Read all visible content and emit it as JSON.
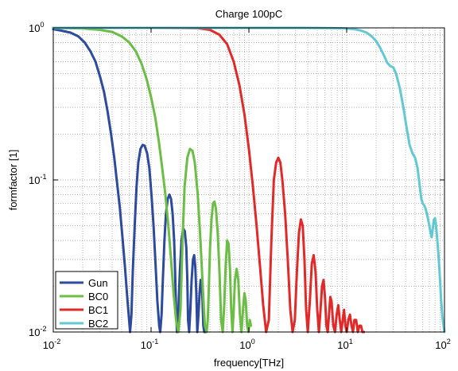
{
  "chart_data": {
    "type": "line",
    "title": "Charge 100pC",
    "xlabel": "frequency[THz]",
    "ylabel": "formfactor [1]",
    "x_scale": "log",
    "y_scale": "log",
    "xlim": [
      0.01,
      100
    ],
    "ylim": [
      0.01,
      1
    ],
    "grid": true,
    "legend_position": "bottom-left",
    "x_ticks": [
      {
        "base": "10",
        "exp": "-2"
      },
      {
        "base": "10",
        "exp": "-1"
      },
      {
        "base": "10",
        "exp": "0"
      },
      {
        "base": "10",
        "exp": "1"
      },
      {
        "base": "10",
        "exp": "2"
      }
    ],
    "y_ticks": [
      {
        "base": "10",
        "exp": "-2"
      },
      {
        "base": "10",
        "exp": "-1"
      },
      {
        "base": "10",
        "exp": "0"
      }
    ],
    "series": [
      {
        "name": "Gun",
        "color": "#2e4a9c",
        "x": [
          0.01,
          0.012,
          0.015,
          0.018,
          0.021,
          0.024,
          0.027,
          0.03,
          0.033,
          0.036,
          0.039,
          0.042,
          0.045,
          0.048,
          0.051,
          0.054,
          0.057,
          0.059,
          0.061,
          0.063,
          0.065,
          0.068,
          0.071,
          0.074,
          0.078,
          0.082,
          0.086,
          0.091,
          0.096,
          0.101,
          0.106,
          0.111,
          0.116,
          0.121,
          0.124,
          0.128,
          0.132,
          0.137,
          0.142,
          0.148,
          0.154,
          0.16,
          0.166,
          0.172,
          0.176,
          0.18,
          0.184,
          0.19,
          0.197,
          0.205,
          0.213,
          0.221,
          0.229,
          0.235,
          0.239,
          0.245,
          0.252,
          0.26,
          0.268,
          0.276,
          0.283,
          0.29,
          0.297,
          0.305,
          0.313,
          0.321,
          0.329,
          0.336,
          0.342,
          0.35,
          0.36
        ],
        "y": [
          0.98,
          0.96,
          0.93,
          0.88,
          0.8,
          0.7,
          0.6,
          0.48,
          0.38,
          0.28,
          0.2,
          0.14,
          0.095,
          0.065,
          0.042,
          0.027,
          0.017,
          0.013,
          0.01,
          0.013,
          0.025,
          0.05,
          0.09,
          0.13,
          0.16,
          0.17,
          0.168,
          0.15,
          0.12,
          0.08,
          0.05,
          0.028,
          0.016,
          0.011,
          0.01,
          0.013,
          0.022,
          0.04,
          0.06,
          0.075,
          0.08,
          0.075,
          0.06,
          0.04,
          0.025,
          0.014,
          0.01,
          0.014,
          0.025,
          0.04,
          0.048,
          0.046,
          0.036,
          0.022,
          0.012,
          0.01,
          0.014,
          0.022,
          0.03,
          0.032,
          0.027,
          0.018,
          0.01,
          0.013,
          0.018,
          0.022,
          0.021,
          0.016,
          0.011,
          0.01,
          0.01
        ]
      },
      {
        "name": "BC0",
        "color": "#6cbd45",
        "x": [
          0.01,
          0.02,
          0.03,
          0.04,
          0.05,
          0.06,
          0.07,
          0.08,
          0.09,
          0.1,
          0.11,
          0.12,
          0.13,
          0.14,
          0.15,
          0.16,
          0.17,
          0.18,
          0.19,
          0.2,
          0.21,
          0.22,
          0.235,
          0.25,
          0.265,
          0.28,
          0.3,
          0.32,
          0.34,
          0.355,
          0.37,
          0.38,
          0.39,
          0.4,
          0.415,
          0.43,
          0.445,
          0.46,
          0.48,
          0.5,
          0.52,
          0.54,
          0.56,
          0.58,
          0.6,
          0.62,
          0.64,
          0.66,
          0.68,
          0.7,
          0.72,
          0.75,
          0.78,
          0.81,
          0.84,
          0.87,
          0.9,
          0.93,
          0.96,
          0.99,
          1.02,
          1.05
        ],
        "y": [
          1.0,
          0.99,
          0.97,
          0.94,
          0.88,
          0.8,
          0.7,
          0.58,
          0.46,
          0.35,
          0.26,
          0.18,
          0.12,
          0.08,
          0.05,
          0.03,
          0.018,
          0.012,
          0.01,
          0.014,
          0.04,
          0.09,
          0.14,
          0.16,
          0.155,
          0.13,
          0.08,
          0.04,
          0.018,
          0.011,
          0.01,
          0.012,
          0.02,
          0.035,
          0.055,
          0.07,
          0.072,
          0.065,
          0.045,
          0.025,
          0.012,
          0.01,
          0.015,
          0.028,
          0.04,
          0.038,
          0.026,
          0.014,
          0.01,
          0.014,
          0.022,
          0.026,
          0.022,
          0.013,
          0.01,
          0.014,
          0.018,
          0.016,
          0.011,
          0.01,
          0.012,
          0.011
        ]
      },
      {
        "name": "BC1",
        "color": "#e02a2a",
        "x": [
          0.01,
          0.05,
          0.1,
          0.2,
          0.3,
          0.4,
          0.5,
          0.6,
          0.7,
          0.8,
          0.9,
          1.0,
          1.1,
          1.2,
          1.3,
          1.4,
          1.5,
          1.6,
          1.7,
          1.8,
          1.9,
          2.0,
          2.1,
          2.2,
          2.35,
          2.5,
          2.65,
          2.8,
          2.95,
          3.1,
          3.25,
          3.4,
          3.55,
          3.7,
          3.85,
          4.0,
          4.2,
          4.4,
          4.6,
          4.8,
          5.0,
          5.2,
          5.4,
          5.6,
          5.8,
          6.0,
          6.2,
          6.4,
          6.6,
          6.8,
          7.0,
          7.3,
          7.6,
          7.9,
          8.2,
          8.5,
          8.8,
          9.1,
          9.4,
          9.7,
          10.0,
          10.4,
          10.8,
          11.2,
          11.6,
          12.0,
          12.5,
          13.0,
          13.5,
          14.0,
          14.5,
          15.0
        ],
        "y": [
          1.0,
          1.0,
          1.0,
          0.999,
          0.995,
          0.97,
          0.9,
          0.78,
          0.6,
          0.42,
          0.27,
          0.16,
          0.09,
          0.05,
          0.027,
          0.015,
          0.01,
          0.012,
          0.04,
          0.1,
          0.13,
          0.14,
          0.13,
          0.1,
          0.06,
          0.03,
          0.014,
          0.01,
          0.012,
          0.025,
          0.045,
          0.055,
          0.05,
          0.03,
          0.014,
          0.01,
          0.016,
          0.028,
          0.032,
          0.025,
          0.014,
          0.01,
          0.014,
          0.02,
          0.022,
          0.017,
          0.011,
          0.01,
          0.013,
          0.017,
          0.016,
          0.011,
          0.01,
          0.013,
          0.015,
          0.012,
          0.01,
          0.012,
          0.014,
          0.011,
          0.01,
          0.012,
          0.013,
          0.011,
          0.01,
          0.012,
          0.012,
          0.01,
          0.011,
          0.011,
          0.01,
          0.01
        ]
      },
      {
        "name": "BC2",
        "color": "#62c9d3",
        "x": [
          0.01,
          0.1,
          1,
          3,
          5,
          8,
          10,
          12,
          14,
          16,
          18,
          20,
          22,
          24,
          26,
          28,
          30,
          32,
          35,
          38,
          41,
          44,
          47,
          50,
          53,
          56,
          58,
          60,
          62,
          64,
          66,
          68,
          70,
          72,
          74,
          76,
          78,
          80,
          82,
          84,
          86,
          88,
          90,
          92,
          94,
          96,
          98,
          100
        ],
        "y": [
          1.0,
          1.0,
          1.0,
          1.0,
          0.999,
          0.995,
          0.99,
          0.98,
          0.96,
          0.93,
          0.88,
          0.82,
          0.74,
          0.66,
          0.59,
          0.56,
          0.55,
          0.5,
          0.4,
          0.3,
          0.22,
          0.17,
          0.15,
          0.14,
          0.12,
          0.09,
          0.075,
          0.07,
          0.068,
          0.065,
          0.06,
          0.055,
          0.05,
          0.045,
          0.042,
          0.048,
          0.055,
          0.056,
          0.05,
          0.042,
          0.035,
          0.028,
          0.022,
          0.017,
          0.014,
          0.012,
          0.011,
          0.01
        ]
      }
    ]
  }
}
